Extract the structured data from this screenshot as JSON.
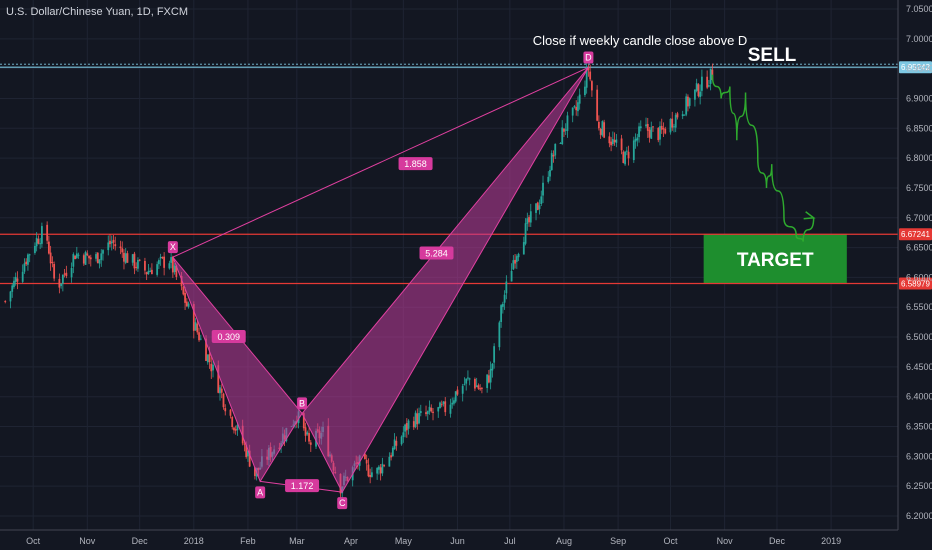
{
  "chart_data": {
    "type": "candlestick",
    "title": "U.S. Dollar/Chinese Yuan, 1D, FXCM",
    "x_ticks": [
      "Oct",
      "Nov",
      "Dec",
      "2018",
      "Feb",
      "Mar",
      "Apr",
      "May",
      "Jun",
      "Jul",
      "Aug",
      "Sep",
      "Oct",
      "Nov",
      "Dec",
      "2019"
    ],
    "y_ticks": [
      "7.05000",
      "7.00000",
      "6.95000",
      "6.90000",
      "6.85000",
      "6.80000",
      "6.75000",
      "6.70000",
      "6.65000",
      "6.60000",
      "6.55000",
      "6.50000",
      "6.45000",
      "6.40000",
      "6.35000",
      "6.30000",
      "6.25000",
      "6.20000"
    ],
    "ylim": [
      6.19,
      7.065
    ],
    "price_path": [
      [
        "2017-09-15",
        6.56
      ],
      [
        "2017-09-25",
        6.62
      ],
      [
        "2017-10-02",
        6.66
      ],
      [
        "2017-10-08",
        6.68
      ],
      [
        "2017-10-14",
        6.58
      ],
      [
        "2017-10-25",
        6.64
      ],
      [
        "2017-11-05",
        6.63
      ],
      [
        "2017-11-15",
        6.66
      ],
      [
        "2017-11-25",
        6.63
      ],
      [
        "2017-12-05",
        6.61
      ],
      [
        "2017-12-10",
        6.62
      ],
      [
        "2017-12-18",
        6.63
      ],
      [
        "2017-12-31",
        6.53
      ],
      [
        "2018-01-10",
        6.46
      ],
      [
        "2018-01-20",
        6.38
      ],
      [
        "2018-01-31",
        6.31
      ],
      [
        "2018-02-05",
        6.27
      ],
      [
        "2018-02-12",
        6.3
      ],
      [
        "2018-02-20",
        6.33
      ],
      [
        "2018-03-01",
        6.37
      ],
      [
        "2018-03-08",
        6.32
      ],
      [
        "2018-03-16",
        6.34
      ],
      [
        "2018-03-26",
        6.25
      ],
      [
        "2018-04-05",
        6.29
      ],
      [
        "2018-04-15",
        6.27
      ],
      [
        "2018-04-25",
        6.31
      ],
      [
        "2018-05-05",
        6.36
      ],
      [
        "2018-05-15",
        6.37
      ],
      [
        "2018-05-25",
        6.38
      ],
      [
        "2018-06-01",
        6.41
      ],
      [
        "2018-06-08",
        6.43
      ],
      [
        "2018-06-15",
        6.41
      ],
      [
        "2018-06-20",
        6.44
      ],
      [
        "2018-06-27",
        6.56
      ],
      [
        "2018-07-03",
        6.63
      ],
      [
        "2018-07-10",
        6.68
      ],
      [
        "2018-07-17",
        6.72
      ],
      [
        "2018-07-24",
        6.79
      ],
      [
        "2018-08-01",
        6.85
      ],
      [
        "2018-08-08",
        6.88
      ],
      [
        "2018-08-15",
        6.95
      ],
      [
        "2018-08-20",
        6.86
      ],
      [
        "2018-08-28",
        6.83
      ],
      [
        "2018-09-05",
        6.8
      ],
      [
        "2018-09-15",
        6.85
      ],
      [
        "2018-09-25",
        6.84
      ],
      [
        "2018-10-01",
        6.86
      ],
      [
        "2018-10-10",
        6.89
      ],
      [
        "2018-10-18",
        6.92
      ],
      [
        "2018-10-25",
        6.94
      ]
    ],
    "projection_path": [
      [
        "2018-10-25",
        6.94
      ],
      [
        "2018-10-30",
        6.9
      ],
      [
        "2018-11-04",
        6.92
      ],
      [
        "2018-11-08",
        6.83
      ],
      [
        "2018-11-13",
        6.91
      ],
      [
        "2018-11-20",
        6.8
      ],
      [
        "2018-11-25",
        6.75
      ],
      [
        "2018-11-28",
        6.79
      ],
      [
        "2018-12-05",
        6.7
      ],
      [
        "2018-12-12",
        6.67
      ],
      [
        "2018-12-16",
        6.66
      ],
      [
        "2018-12-22",
        6.7
      ]
    ],
    "horizontal_lines": [
      {
        "value": 6.95242,
        "label": "6.95242",
        "color": "#7ec8e3"
      },
      {
        "value": 6.67241,
        "label": "6.67241",
        "color": "#e53935"
      },
      {
        "value": 6.58979,
        "label": "6.58979",
        "color": "#e53935"
      }
    ],
    "pattern_points": [
      {
        "label": "X",
        "date": "2017-12-20",
        "value": 6.634
      },
      {
        "label": "A",
        "date": "2018-02-08",
        "value": 6.258
      },
      {
        "label": "B",
        "date": "2018-03-04",
        "value": 6.372
      },
      {
        "label": "C",
        "date": "2018-03-27",
        "value": 6.24
      },
      {
        "label": "D",
        "date": "2018-08-15",
        "value": 6.952
      }
    ],
    "ratios": [
      {
        "label": "0.309",
        "date": "2018-01-21",
        "value": 6.5
      },
      {
        "label": "1.172",
        "date": "2018-03-04",
        "value": 6.25
      },
      {
        "label": "1.858",
        "date": "2018-05-08",
        "value": 6.79
      },
      {
        "label": "5.284",
        "date": "2018-05-20",
        "value": 6.64
      }
    ],
    "annotations": {
      "close_note": "Close if weekly candle close above D",
      "sell": "SELL",
      "target": "TARGET"
    },
    "target_zone": {
      "start_date": "2018-10-20",
      "end_date": "2019-01-10",
      "low": 6.58979,
      "high": 6.67241,
      "color": "#1e8e2e"
    },
    "colors": {
      "up": "#26a69a",
      "down": "#ef5350",
      "pattern_fill": "#c03c9a",
      "pattern_stroke": "#e040a0",
      "projection": "#2eaa2e",
      "background": "#131722"
    }
  }
}
